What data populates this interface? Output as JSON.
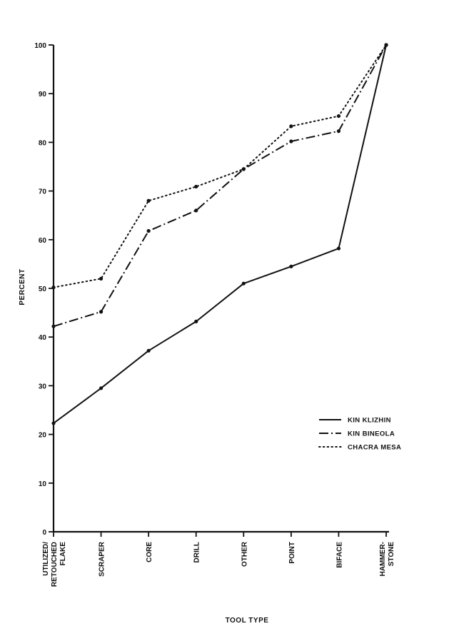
{
  "chart_data": {
    "type": "line",
    "title": "",
    "xlabel": "TOOL TYPE",
    "ylabel": "PERCENT",
    "categories": [
      "UTILIZED/ RETOUCHED FLAKE",
      "SCRAPER",
      "CORE",
      "DRILL",
      "OTHER",
      "POINT",
      "BIFACE",
      "HAMMER- STONE"
    ],
    "category_lines": [
      [
        "UTILIZED/",
        "RETOUCHED",
        "FLAKE"
      ],
      [
        "SCRAPER"
      ],
      [
        "CORE"
      ],
      [
        "DRILL"
      ],
      [
        "OTHER"
      ],
      [
        "POINT"
      ],
      [
        "BIFACE"
      ],
      [
        "HAMMER-",
        "STONE"
      ]
    ],
    "ylim": [
      0,
      100
    ],
    "yticks": [
      0,
      10,
      20,
      30,
      40,
      50,
      60,
      70,
      80,
      90,
      100
    ],
    "grid": false,
    "legend_position": "lower-right",
    "series": [
      {
        "name": "KIN KLIZHIN",
        "style": "solid",
        "values": [
          22.3,
          29.5,
          37.2,
          43.2,
          51.0,
          54.5,
          58.2,
          100
        ]
      },
      {
        "name": "KIN BINEOLA",
        "style": "dash-dot",
        "values": [
          42.2,
          45.2,
          61.8,
          66.0,
          74.5,
          80.2,
          82.3,
          100
        ]
      },
      {
        "name": "CHACRA MESA",
        "style": "dotted",
        "values": [
          50.2,
          52.0,
          68.0,
          70.9,
          74.5,
          83.3,
          85.4,
          100
        ]
      }
    ]
  }
}
